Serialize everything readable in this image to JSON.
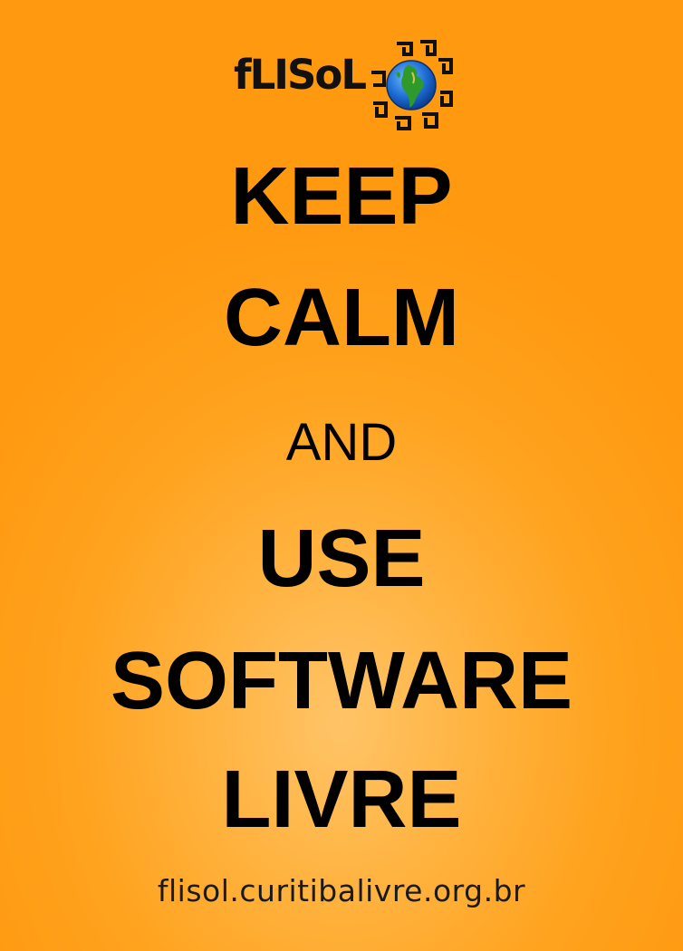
{
  "logo": {
    "wordmark": "fLISoL",
    "emblem": "globe-with-sun-rays-icon"
  },
  "headline": {
    "line1": "KEEP",
    "line2": "CALM",
    "line3": "AND",
    "line4": "USE",
    "line5": "SOFTWARE",
    "line6": "LIVRE"
  },
  "footer": {
    "url": "flisol.curitibalivre.org.br"
  },
  "colors": {
    "background_center": "#ffc468",
    "background_edge": "#ff9910",
    "text": "#000000"
  }
}
